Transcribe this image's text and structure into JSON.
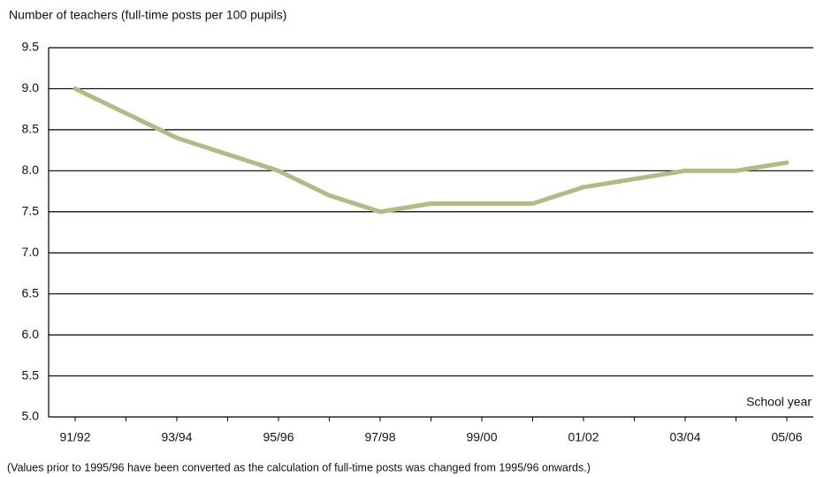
{
  "chart_data": {
    "type": "line",
    "title": "Number of teachers (full-time posts per 100 pupils)",
    "x_label": "School year",
    "note": "(Values prior to 1995/96 have been converted as the calculation of full-time posts was changed from 1995/96 onwards.)",
    "categories": [
      "91/92",
      null,
      "93/94",
      null,
      "95/96",
      null,
      "97/98",
      null,
      "99/00",
      null,
      "01/02",
      null,
      "03/04",
      null,
      "05/06"
    ],
    "values": [
      9.0,
      8.7,
      8.4,
      8.2,
      8.0,
      7.7,
      7.5,
      7.6,
      7.6,
      7.6,
      7.8,
      7.9,
      8.0,
      8.0,
      8.1
    ],
    "color": "#b3bb84",
    "ylim": [
      5,
      9.5
    ],
    "yticks": [
      {
        "value": 5,
        "label": "5.0"
      },
      5.5,
      {
        "value": 6,
        "label": "6.0"
      },
      6.5,
      {
        "value": 7,
        "label": "7.0"
      },
      7.5,
      {
        "value": 8,
        "label": "8.0"
      },
      8.5,
      {
        "value": 9,
        "label": "9.0"
      },
      9.5
    ],
    "grid": true
  }
}
